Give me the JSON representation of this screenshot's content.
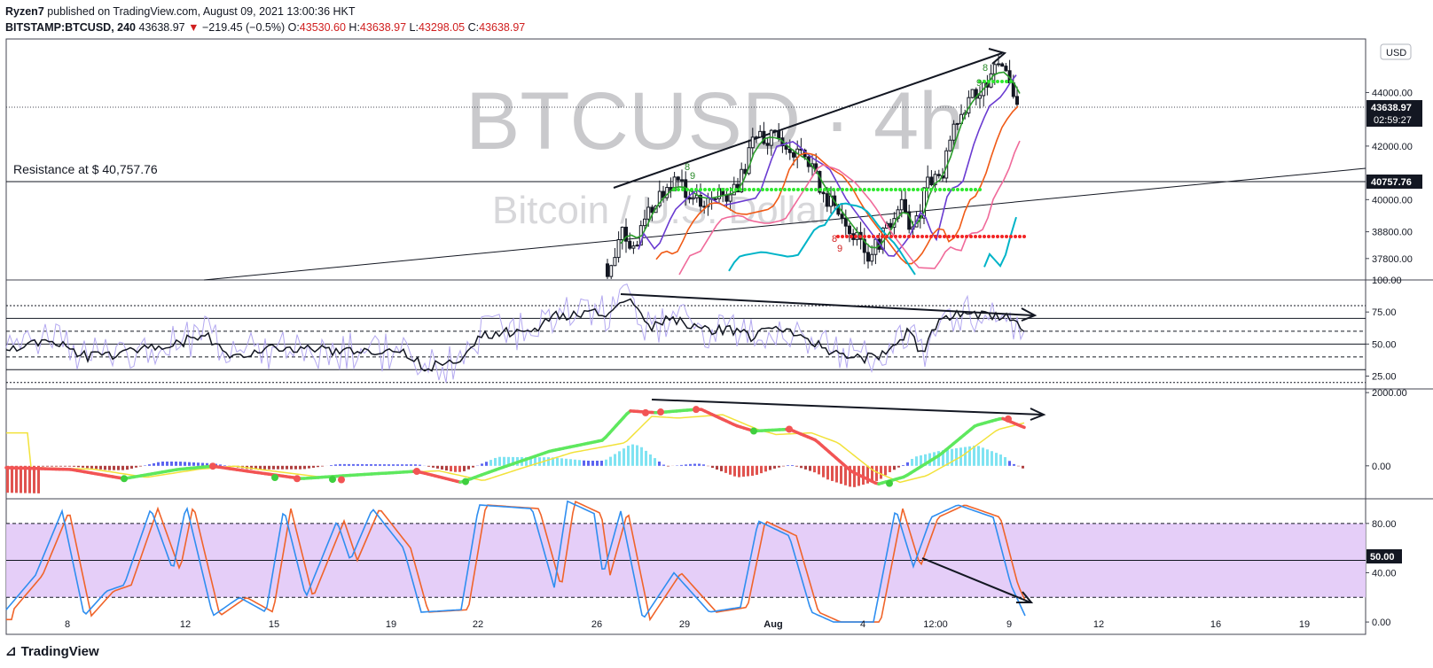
{
  "header": {
    "publisher": "Ryzen7",
    "published_text": "published on TradingView.com, August 09, 2021 13:00:36 HKT",
    "symbol": "BITSTAMP:BTCUSD, 240",
    "last": "43638.97",
    "change": "−219.45 (−0.5%)",
    "o_label": "O:",
    "o": "43530.60",
    "h_label": "H:",
    "h": "43638.97",
    "l_label": "L:",
    "l": "43298.05",
    "c_label": "C:",
    "c": "43638.97"
  },
  "watermark": {
    "main": "BTCUSD · 4h",
    "sub": "Bitcoin / U.S. Dollar"
  },
  "annotations": {
    "resistance": "Resistance at $ 40,757.76"
  },
  "currency": "USD",
  "price_tags": {
    "last": "43638.97",
    "countdown": "02:59:27",
    "resistance": "40757.76",
    "stoch_mid": "50.00"
  },
  "footer": {
    "brand": "TradingView"
  },
  "colors": {
    "up": "#131722",
    "green_dots": "#2fe82f",
    "red_dots": "#f22525",
    "stoch_band": "#e2c9f7"
  },
  "chart_data": [
    {
      "type": "candlestick",
      "panel": "price",
      "y_ticks": [
        37800,
        38800,
        40000,
        42000,
        44000
      ],
      "y_tick_labels": [
        "37800.00",
        "38800.00",
        "40000.00",
        "42000.00",
        "44000.00"
      ],
      "ylim": [
        37000,
        46000
      ],
      "x_tick_labels": [
        "8",
        "12",
        "15",
        "19",
        "22",
        "26",
        "29",
        "Aug",
        "4",
        "12:00",
        "9",
        "12",
        "16",
        "19"
      ],
      "last_price": 43638.97,
      "resistance_level": 40757.76,
      "sequential_labels": [
        "8",
        "9",
        "8",
        "9",
        "8",
        "9"
      ]
    },
    {
      "type": "line",
      "panel": "rsi",
      "y_ticks": [
        25,
        50,
        75,
        100
      ],
      "y_tick_labels": [
        "25.00",
        "50.00",
        "75.00",
        "100.00"
      ],
      "ylim": [
        15,
        100
      ]
    },
    {
      "type": "line",
      "panel": "macd",
      "y_ticks": [
        0,
        2000
      ],
      "y_tick_labels": [
        "0.00",
        "2000.00"
      ],
      "ylim": [
        -900,
        2100
      ]
    },
    {
      "type": "line",
      "panel": "stoch",
      "y_ticks": [
        0,
        40,
        80
      ],
      "y_tick_labels": [
        "0.00",
        "40.00",
        "80.00"
      ],
      "ylim": [
        -10,
        100
      ],
      "band": [
        20,
        80
      ],
      "mid": 50
    }
  ]
}
